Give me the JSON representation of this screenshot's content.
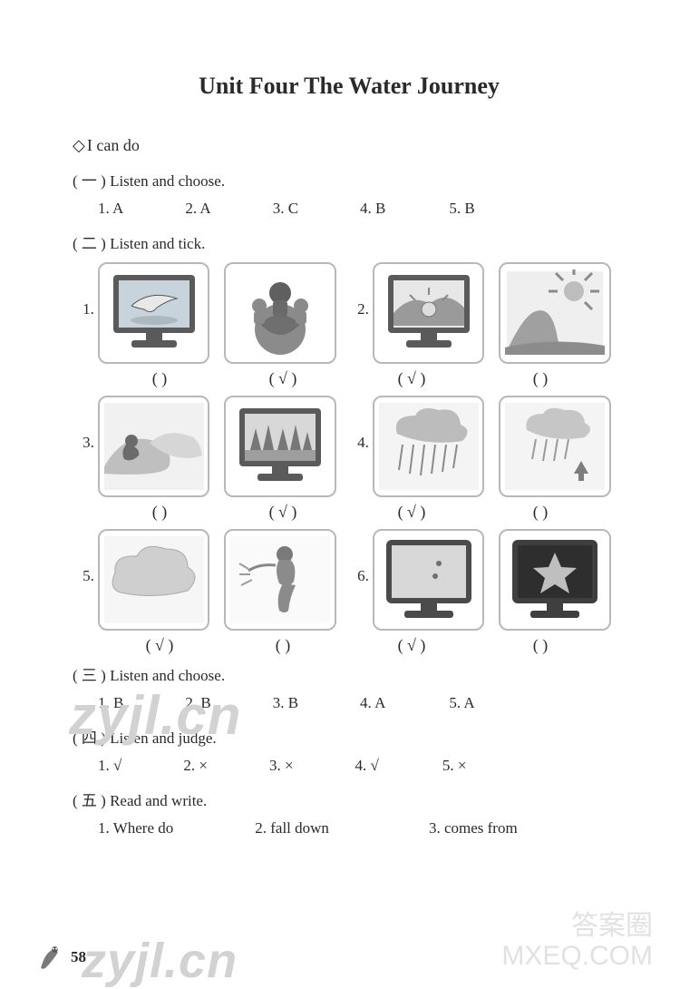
{
  "title": "Unit Four   The Water Journey",
  "lead": "I can do",
  "sections": {
    "s1": {
      "heading": "( 一 ) Listen and choose.",
      "answers": [
        "1. A",
        "2. A",
        "3. C",
        "4. B",
        "5. B"
      ],
      "gaps": [
        68,
        68,
        68,
        70,
        0
      ]
    },
    "s2": {
      "heading": "( 二 ) Listen and tick.",
      "rows": [
        {
          "num": "1.",
          "num2": "2.",
          "marks": [
            "(      )",
            "( √ )",
            "( √ )",
            "(      )"
          ]
        },
        {
          "num": "3.",
          "num2": "4.",
          "marks": [
            "(      )",
            "( √ )",
            "( √ )",
            "(      )"
          ]
        },
        {
          "num": "5.",
          "num2": "6.",
          "marks": [
            "( √ )",
            "(      )",
            "( √ )",
            "(      )"
          ]
        }
      ]
    },
    "s3": {
      "heading": "( 三 ) Listen and choose.",
      "answers": [
        "1. B",
        "2. B",
        "3. B",
        "4. A",
        "5. A"
      ],
      "gaps": [
        68,
        68,
        68,
        70,
        0
      ]
    },
    "s4": {
      "heading": "( 四 ) Listen and judge.",
      "answers": [
        "1. √",
        "2. ×",
        "3. ×",
        "4. √",
        "5. ×"
      ],
      "gaps": [
        68,
        68,
        68,
        70,
        0
      ]
    },
    "s5": {
      "heading": "( 五 ) Read and write.",
      "answers": [
        "1. Where do",
        "2. fall down",
        "3. comes from"
      ],
      "gaps": [
        90,
        110,
        0
      ]
    }
  },
  "page_number": "58",
  "watermarks": {
    "wm1": "zyjl.cn",
    "wm2": "zyjl.cn",
    "wm3": "答案圈\nMXEQ.COM"
  },
  "colors": {
    "tile_border": "#b8b8b8",
    "monitor_body": "#5a5a5a",
    "monitor_screen": "#cfcfcf",
    "sky_grad_top": "#d9d9d9",
    "sky_grad_bot": "#f2f2f2"
  },
  "icons": {
    "r1c1": "monitor-plane",
    "r1c2": "kids-globe",
    "r1c3": "monitor-sunrise",
    "r1c4": "sun-landscape",
    "r2c1": "wave-swimmer",
    "r2c2": "monitor-forest",
    "r2c3": "rain-cloud",
    "r2c4": "evap-cloud",
    "r3c1": "cloud",
    "r3c2": "girl-water",
    "r3c3": "monitor-moon",
    "r3c4": "monitor-star"
  }
}
